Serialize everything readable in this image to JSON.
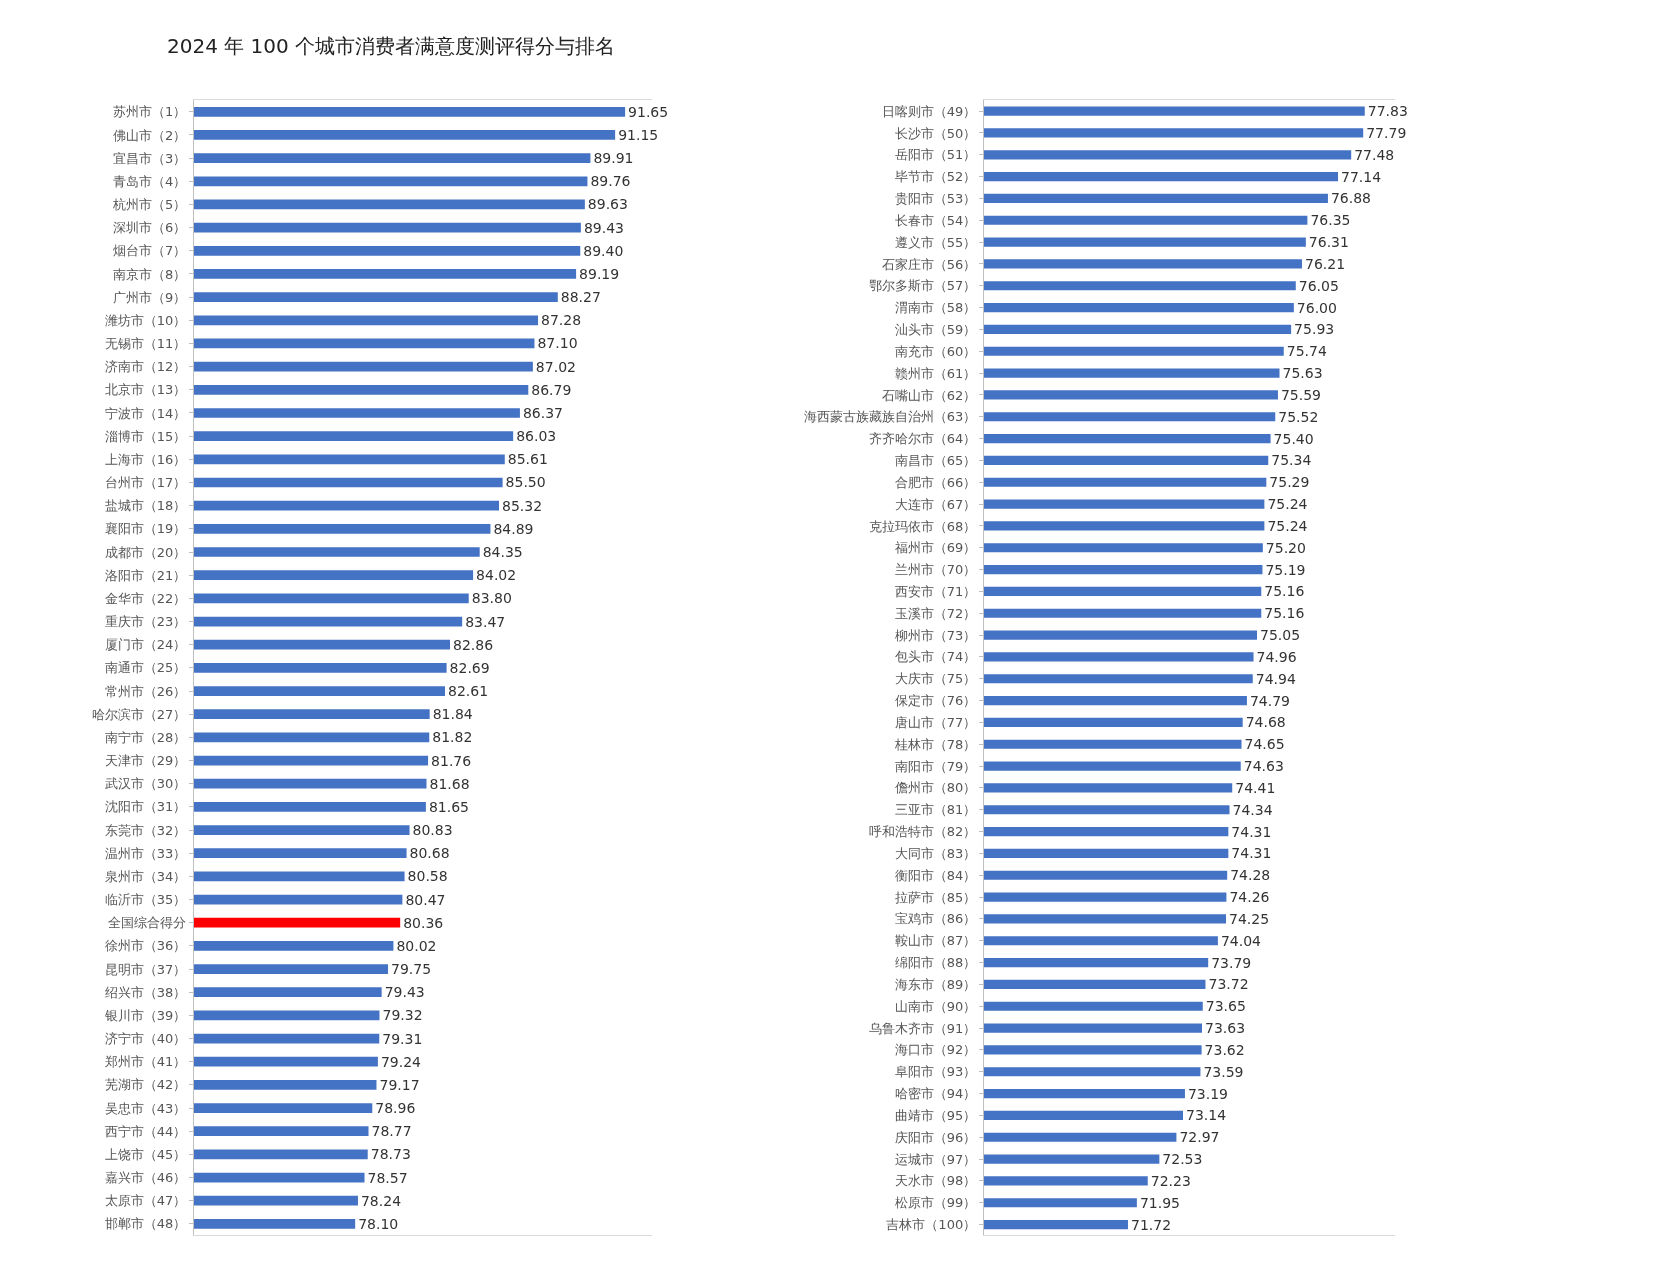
{
  "chart_data": [
    {
      "type": "bar",
      "orientation": "horizontal",
      "title": "2024 年 100 个城市消费者满意度测评得分与排名",
      "xlim": [
        70,
        93
      ],
      "categories": [
        "苏州市（1）",
        "佛山市（2）",
        "宜昌市（3）",
        "青岛市（4）",
        "杭州市（5）",
        "深圳市（6）",
        "烟台市（7）",
        "南京市（8）",
        "广州市（9）",
        "潍坊市（10）",
        "无锡市（11）",
        "济南市（12）",
        "北京市（13）",
        "宁波市（14）",
        "淄博市（15）",
        "上海市（16）",
        "台州市（17）",
        "盐城市（18）",
        "襄阳市（19）",
        "成都市（20）",
        "洛阳市（21）",
        "金华市（22）",
        "重庆市（23）",
        "厦门市（24）",
        "南通市（25）",
        "常州市（26）",
        "哈尔滨市（27）",
        "南宁市（28）",
        "天津市（29）",
        "武汉市（30）",
        "沈阳市（31）",
        "东莞市（32）",
        "温州市（33）",
        "泉州市（34）",
        "临沂市（35）",
        "全国综合得分",
        "徐州市（36）",
        "昆明市（37）",
        "绍兴市（38）",
        "银川市（39）",
        "济宁市（40）",
        "郑州市（41）",
        "芜湖市（42）",
        "吴忠市（43）",
        "西宁市（44）",
        "上饶市（45）",
        "嘉兴市（46）",
        "太原市（47）",
        "邯郸市（48）"
      ],
      "values": [
        91.65,
        91.15,
        89.91,
        89.76,
        89.63,
        89.43,
        89.4,
        89.19,
        88.27,
        87.28,
        87.1,
        87.02,
        86.79,
        86.37,
        86.03,
        85.61,
        85.5,
        85.32,
        84.89,
        84.35,
        84.02,
        83.8,
        83.47,
        82.86,
        82.69,
        82.61,
        81.84,
        81.82,
        81.76,
        81.68,
        81.65,
        80.83,
        80.68,
        80.58,
        80.47,
        80.36,
        80.02,
        79.75,
        79.43,
        79.32,
        79.31,
        79.24,
        79.17,
        78.96,
        78.77,
        78.73,
        78.57,
        78.24,
        78.1
      ],
      "value_labels": [
        "91.65",
        "91.15",
        "89.91",
        "89.76",
        "89.63",
        "89.43",
        "89.40",
        "89.19",
        "88.27",
        "87.28",
        "87.10",
        "87.02",
        "86.79",
        "86.37",
        "86.03",
        "85.61",
        "85.50",
        "85.32",
        "84.89",
        "84.35",
        "84.02",
        "83.80",
        "83.47",
        "82.86",
        "82.69",
        "82.61",
        "81.84",
        "81.82",
        "81.76",
        "81.68",
        "81.65",
        "80.83",
        "80.68",
        "80.58",
        "80.47",
        "80.36",
        "80.02",
        "79.75",
        "79.43",
        "79.32",
        "79.31",
        "79.24",
        "79.17",
        "78.96",
        "78.77",
        "78.73",
        "78.57",
        "78.24",
        "78.10"
      ],
      "colors": [
        "#4472c4",
        "#4472c4",
        "#4472c4",
        "#4472c4",
        "#4472c4",
        "#4472c4",
        "#4472c4",
        "#4472c4",
        "#4472c4",
        "#4472c4",
        "#4472c4",
        "#4472c4",
        "#4472c4",
        "#4472c4",
        "#4472c4",
        "#4472c4",
        "#4472c4",
        "#4472c4",
        "#4472c4",
        "#4472c4",
        "#4472c4",
        "#4472c4",
        "#4472c4",
        "#4472c4",
        "#4472c4",
        "#4472c4",
        "#4472c4",
        "#4472c4",
        "#4472c4",
        "#4472c4",
        "#4472c4",
        "#4472c4",
        "#4472c4",
        "#4472c4",
        "#4472c4",
        "#ff0000",
        "#4472c4",
        "#4472c4",
        "#4472c4",
        "#4472c4",
        "#4472c4",
        "#4472c4",
        "#4472c4",
        "#4472c4",
        "#4472c4",
        "#4472c4",
        "#4472c4",
        "#4472c4",
        "#4472c4"
      ]
    },
    {
      "type": "bar",
      "orientation": "horizontal",
      "xlim": [
        68,
        78.6
      ],
      "categories": [
        "日喀则市（49）",
        "长沙市（50）",
        "岳阳市（51）",
        "毕节市（52）",
        "贵阳市（53）",
        "长春市（54）",
        "遵义市（55）",
        "石家庄市（56）",
        "鄂尔多斯市（57）",
        "渭南市（58）",
        "汕头市（59）",
        "南充市（60）",
        "赣州市（61）",
        "石嘴山市（62）",
        "海西蒙古族藏族自治州（63）",
        "齐齐哈尔市（64）",
        "南昌市（65）",
        "合肥市（66）",
        "大连市（67）",
        "克拉玛依市（68）",
        "福州市（69）",
        "兰州市（70）",
        "西安市（71）",
        "玉溪市（72）",
        "柳州市（73）",
        "包头市（74）",
        "大庆市（75）",
        "保定市（76）",
        "唐山市（77）",
        "桂林市（78）",
        "南阳市（79）",
        "儋州市（80）",
        "三亚市（81）",
        "呼和浩特市（82）",
        "大同市（83）",
        "衡阳市（84）",
        "拉萨市（85）",
        "宝鸡市（86）",
        "鞍山市（87）",
        "绵阳市（88）",
        "海东市（89）",
        "山南市（90）",
        "乌鲁木齐市（91）",
        "海口市（92）",
        "阜阳市（93）",
        "哈密市（94）",
        "曲靖市（95）",
        "庆阳市（96）",
        "运城市（97）",
        "天水市（98）",
        "松原市（99）",
        "吉林市（100）"
      ],
      "values": [
        77.83,
        77.79,
        77.48,
        77.14,
        76.88,
        76.35,
        76.31,
        76.21,
        76.05,
        76.0,
        75.93,
        75.74,
        75.63,
        75.59,
        75.52,
        75.4,
        75.34,
        75.29,
        75.24,
        75.24,
        75.2,
        75.19,
        75.16,
        75.16,
        75.05,
        74.96,
        74.94,
        74.79,
        74.68,
        74.65,
        74.63,
        74.41,
        74.34,
        74.31,
        74.31,
        74.28,
        74.26,
        74.25,
        74.04,
        73.79,
        73.72,
        73.65,
        73.63,
        73.62,
        73.59,
        73.19,
        73.14,
        72.97,
        72.53,
        72.23,
        71.95,
        71.72
      ],
      "value_labels": [
        "77.83",
        "77.79",
        "77.48",
        "77.14",
        "76.88",
        "76.35",
        "76.31",
        "76.21",
        "76.05",
        "76.00",
        "75.93",
        "75.74",
        "75.63",
        "75.59",
        "75.52",
        "75.40",
        "75.34",
        "75.29",
        "75.24",
        "75.24",
        "75.20",
        "75.19",
        "75.16",
        "75.16",
        "75.05",
        "74.96",
        "74.94",
        "74.79",
        "74.68",
        "74.65",
        "74.63",
        "74.41",
        "74.34",
        "74.31",
        "74.31",
        "74.28",
        "74.26",
        "74.25",
        "74.04",
        "73.79",
        "73.72",
        "73.65",
        "73.63",
        "73.62",
        "73.59",
        "73.19",
        "73.14",
        "72.97",
        "72.53",
        "72.23",
        "71.95",
        "71.72"
      ],
      "color": "#4472c4"
    }
  ]
}
